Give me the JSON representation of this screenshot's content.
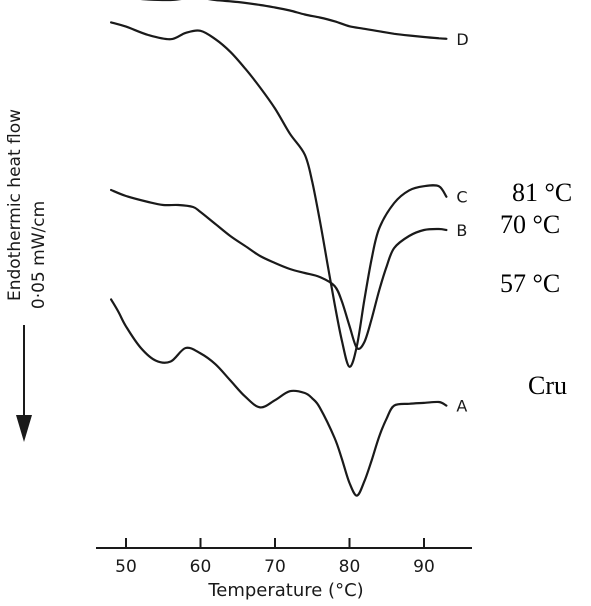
{
  "chart_data": {
    "type": "line",
    "title": "",
    "xlabel": "Temperature (°C)",
    "ylabel": "Endothermic heat flow",
    "ylabel_scale": "0·05 mW/cm",
    "xlim": [
      48,
      95
    ],
    "x_ticks": [
      "50",
      "60",
      "70",
      "80",
      "90"
    ],
    "y_units": "relative",
    "grid": false,
    "series": [
      {
        "name": "D",
        "annotation": "81 °C",
        "x": [
          48,
          50,
          53,
          56,
          58,
          60,
          62,
          65,
          68,
          70,
          72,
          74,
          76,
          78,
          80,
          82,
          84,
          86,
          88,
          90,
          92,
          93
        ],
        "y": [
          0.95,
          0.9,
          0.82,
          0.8,
          0.86,
          0.88,
          0.8,
          0.72,
          0.6,
          0.5,
          0.38,
          0.22,
          0.1,
          -0.05,
          -0.25,
          -0.35,
          -0.45,
          -0.55,
          -0.62,
          -0.68,
          -0.73,
          -0.75
        ]
      },
      {
        "name": "C",
        "annotation": "70 °C",
        "x": [
          48,
          50,
          53,
          56,
          58,
          60,
          62,
          64,
          66,
          68,
          70,
          72,
          74,
          75,
          76,
          77,
          78,
          79,
          80,
          81,
          82,
          83,
          84,
          86,
          88,
          90,
          92,
          93
        ],
        "y": [
          0.8,
          0.7,
          0.5,
          0.4,
          0.55,
          0.6,
          0.4,
          0.1,
          -0.3,
          -0.75,
          -1.25,
          -1.85,
          -2.35,
          -3.0,
          -3.9,
          -4.9,
          -5.9,
          -6.8,
          -7.4,
          -6.9,
          -5.8,
          -4.8,
          -4.1,
          -3.5,
          -3.2,
          -3.1,
          -3.1,
          -3.35
        ]
      },
      {
        "name": "B",
        "annotation": "57 °C",
        "x": [
          48,
          50,
          53,
          55,
          57,
          59,
          60,
          62,
          64,
          66,
          68,
          70,
          72,
          74,
          76,
          78,
          79,
          80,
          81,
          82,
          83,
          84,
          85,
          86,
          88,
          90,
          92,
          93
        ],
        "y": [
          -2.2,
          -2.5,
          -2.8,
          -2.95,
          -2.95,
          -3.05,
          -3.3,
          -3.9,
          -4.5,
          -5.0,
          -5.5,
          -5.85,
          -6.15,
          -6.35,
          -6.55,
          -7.0,
          -7.8,
          -9.0,
          -10.1,
          -9.8,
          -8.6,
          -7.2,
          -6.0,
          -5.1,
          -4.5,
          -4.2,
          -4.15,
          -4.2
        ]
      },
      {
        "name": "A",
        "annotation": "Cru",
        "x": [
          48,
          49,
          50,
          52,
          54,
          56,
          58,
          60,
          62,
          64,
          66,
          68,
          70,
          72,
          74,
          75,
          76,
          78,
          79,
          80,
          81,
          82,
          83,
          84,
          85,
          86,
          88,
          90,
          92,
          93
        ],
        "y": [
          -3.3,
          -4.0,
          -4.8,
          -6.0,
          -6.7,
          -6.75,
          -6.0,
          -6.3,
          -6.9,
          -7.8,
          -8.7,
          -9.3,
          -8.9,
          -8.4,
          -8.5,
          -8.8,
          -9.3,
          -11.0,
          -12.2,
          -13.5,
          -14.2,
          -13.4,
          -12.2,
          -10.9,
          -9.9,
          -9.2,
          -9.1,
          -9.05,
          -9.0,
          -9.2
        ]
      }
    ]
  },
  "left_label": {
    "line1": "Endothermic heat flow",
    "line2": "0·05 mW/cm"
  }
}
